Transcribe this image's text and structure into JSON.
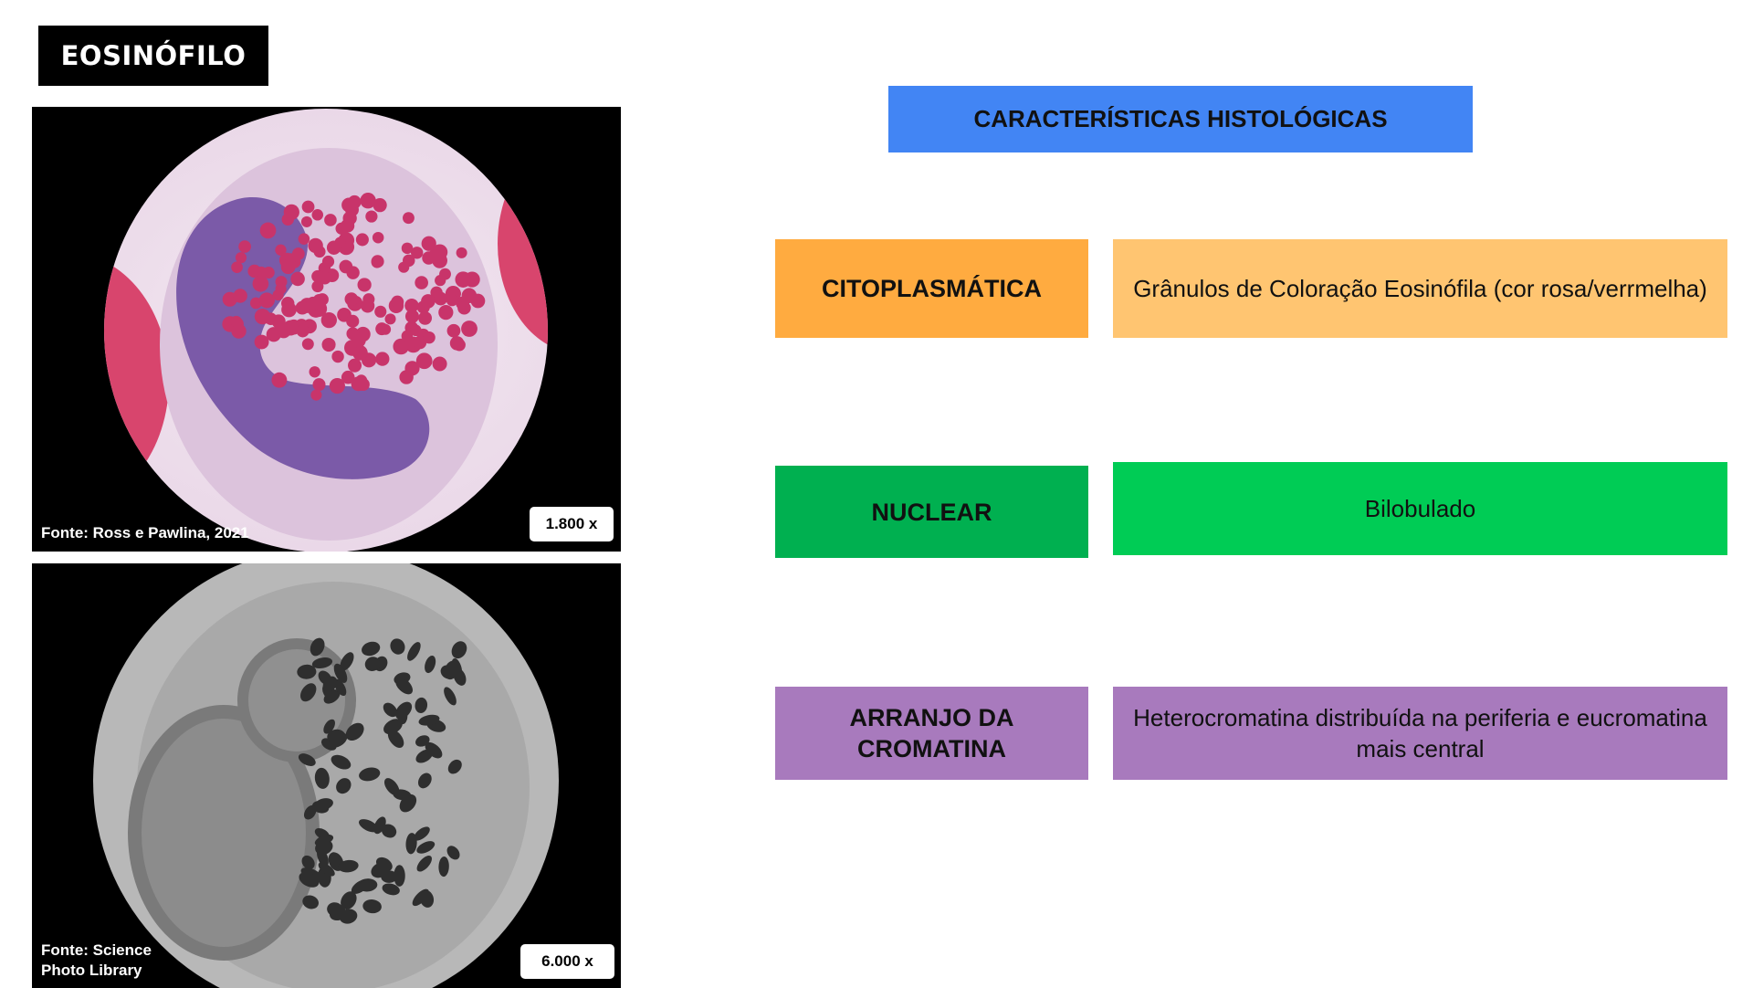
{
  "slide": {
    "title": "EOSINÓFILO",
    "header": "CARACTERÍSTICAS HISTOLÓGICAS"
  },
  "images": [
    {
      "source": "Fonte: Ross e Pawlina, 2021",
      "magnification": "1.800 x"
    },
    {
      "source_line1": "Fonte: Science",
      "source_line2": "Photo Library",
      "magnification": "6.000 x"
    }
  ],
  "rows": [
    {
      "label": "CITOPLASMÁTICA",
      "label_color": "#ffab40",
      "description": "Grânulos de Coloração Eosinófila (cor rosa/verrmelha)",
      "description_color": "#ffc571"
    },
    {
      "label": "NUCLEAR",
      "label_color": "#00b050",
      "description": "Bilobulado",
      "description_color": "#00cc55"
    },
    {
      "label": "ARRANJO DA CROMATINA",
      "label_color": "#a87abd",
      "description": "Heterocromatina distribuída na periferia e eucromatina mais central",
      "description_color": "#a87abd"
    }
  ]
}
